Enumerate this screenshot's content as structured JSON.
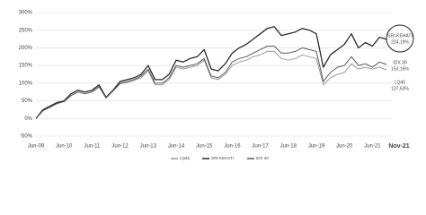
{
  "chart_data": {
    "type": "line",
    "categories": [
      "Jun-09",
      null,
      null,
      null,
      "Jun-10",
      null,
      null,
      null,
      "Jun-11",
      null,
      null,
      null,
      "Jun-12",
      null,
      null,
      null,
      "Jun-13",
      null,
      null,
      null,
      "Jun-14",
      null,
      null,
      null,
      "Jun-15",
      null,
      null,
      null,
      "Jun-16",
      null,
      null,
      null,
      "Jun-17",
      null,
      null,
      null,
      "Jun-18",
      null,
      null,
      null,
      "Jun-19",
      null,
      null,
      null,
      "Jun-20",
      null,
      null,
      null,
      "Jun-21",
      null,
      "Nov-21"
    ],
    "series": [
      {
        "name": "LQ45",
        "color": "#9a9a9a",
        "values": [
          0,
          22,
          32,
          42,
          48,
          65,
          75,
          70,
          75,
          90,
          58,
          78,
          98,
          102,
          108,
          115,
          135,
          95,
          95,
          110,
          145,
          140,
          145,
          150,
          165,
          115,
          110,
          125,
          150,
          160,
          165,
          175,
          180,
          190,
          190,
          170,
          165,
          170,
          180,
          175,
          170,
          95,
          115,
          125,
          130,
          155,
          140,
          145,
          140,
          145,
          137.63
        ]
      },
      {
        "name": "SRI-KEHATI",
        "color": "#2b2b2b",
        "values": [
          0,
          25,
          35,
          45,
          50,
          70,
          80,
          75,
          80,
          95,
          60,
          80,
          105,
          110,
          115,
          125,
          150,
          110,
          110,
          125,
          165,
          160,
          170,
          175,
          195,
          140,
          135,
          155,
          185,
          200,
          210,
          225,
          240,
          255,
          260,
          235,
          240,
          245,
          255,
          250,
          240,
          145,
          180,
          195,
          210,
          240,
          200,
          215,
          205,
          230,
          224.19
        ]
      },
      {
        "name": "IDX 30",
        "color": "#5a5a5a",
        "values": [
          0,
          22,
          32,
          42,
          48,
          65,
          75,
          70,
          75,
          90,
          58,
          78,
          100,
          105,
          110,
          120,
          140,
          100,
          100,
          115,
          150,
          145,
          150,
          155,
          170,
          120,
          115,
          130,
          160,
          170,
          175,
          185,
          195,
          205,
          205,
          185,
          185,
          190,
          200,
          195,
          190,
          105,
          130,
          145,
          150,
          175,
          150,
          155,
          145,
          160,
          153.16
        ]
      }
    ],
    "annotations": [
      {
        "name": "SRI-KEHATI",
        "label": "224,19%"
      },
      {
        "name": "IDX 30",
        "label": "153,16%"
      },
      {
        "name": "LQ45",
        "label": "137,63%"
      }
    ],
    "ylim": [
      -50,
      300
    ],
    "yticks": [
      {
        "value": -50,
        "label": "-50%"
      },
      {
        "value": 0,
        "label": "0%"
      },
      {
        "value": 50,
        "label": "50%"
      },
      {
        "value": 100,
        "label": "100%"
      },
      {
        "value": 150,
        "label": "150%"
      },
      {
        "value": 200,
        "label": "200%"
      },
      {
        "value": 250,
        "label": "250%"
      },
      {
        "value": 300,
        "label": "300%"
      }
    ],
    "grid": true
  }
}
